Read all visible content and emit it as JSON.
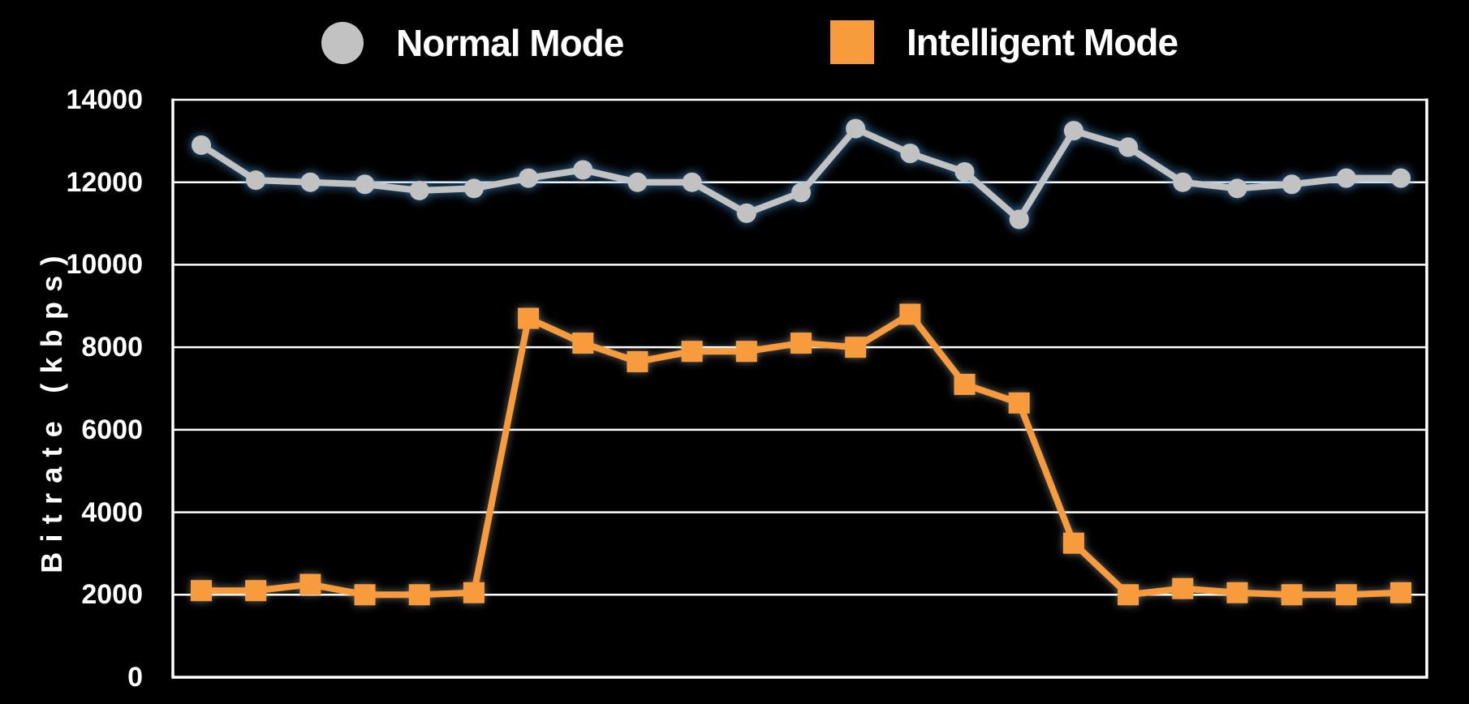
{
  "legend": {
    "items": [
      {
        "label": "Normal Mode",
        "marker": "circle",
        "color": "#c2c2c2"
      },
      {
        "label": "Intelligent Mode",
        "marker": "square",
        "color": "#f79b3d"
      }
    ]
  },
  "y_axis": {
    "title": "Bitrate (kbps)",
    "tick_labels": [
      "14000",
      "12000",
      "10000",
      "8000",
      "6000",
      "4000",
      "2000",
      "0"
    ]
  },
  "colors": {
    "background": "#000000",
    "grid": "#ffffff",
    "text": "#ffffff",
    "normal_series": "#c2c2c2",
    "normal_glow": "#4593d8",
    "intelligent_series": "#f79b3d",
    "intelligent_glow": "#e8e4de"
  },
  "chart_data": {
    "type": "line",
    "title": "",
    "xlabel": "",
    "ylabel": "Bitrate (kbps)",
    "ylim": [
      0,
      14000
    ],
    "y_tick_interval": 2000,
    "grid": true,
    "legend_position": "top",
    "x_tick_labels": "none",
    "point_count": 23,
    "series": [
      {
        "name": "Normal Mode",
        "marker": "circle",
        "color": "#c2c2c2",
        "glow_color": "#4593d8",
        "glow_opacity": 0.85,
        "values": [
          12900,
          12050,
          12000,
          11950,
          11800,
          11850,
          12100,
          12300,
          12000,
          12000,
          11250,
          11750,
          13300,
          12700,
          12250,
          11100,
          13250,
          12850,
          12000,
          11850,
          11950,
          12100,
          12100
        ]
      },
      {
        "name": "Intelligent Mode",
        "marker": "square",
        "color": "#f79b3d",
        "glow_color": "#e8e4de",
        "glow_opacity": 0.45,
        "values": [
          2100,
          2100,
          2250,
          2000,
          2000,
          2050,
          8700,
          8100,
          7650,
          7900,
          7900,
          8100,
          8000,
          8800,
          7100,
          6650,
          3250,
          2000,
          2150,
          2050,
          2000,
          2000,
          2050
        ]
      }
    ]
  }
}
